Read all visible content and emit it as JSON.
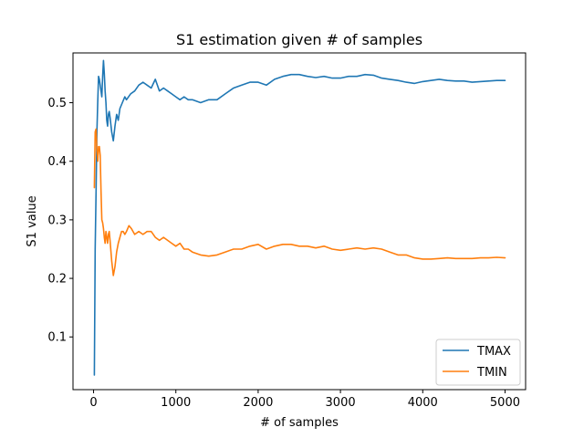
{
  "chart_data": {
    "type": "line",
    "title": "S1 estimation given # of samples",
    "xlabel": "# of samples",
    "ylabel": "S1 value",
    "xlim": [
      -250,
      5250
    ],
    "ylim": [
      0.01,
      0.585
    ],
    "xticks": [
      0,
      1000,
      2000,
      3000,
      4000,
      5000
    ],
    "yticks": [
      0.1,
      0.2,
      0.3,
      0.4,
      0.5
    ],
    "grid": false,
    "legend_position": "lower right",
    "series": [
      {
        "name": "TMAX",
        "color": "#1f77b4",
        "points": [
          [
            10,
            0.035
          ],
          [
            20,
            0.25
          ],
          [
            30,
            0.35
          ],
          [
            40,
            0.45
          ],
          [
            50,
            0.5
          ],
          [
            60,
            0.545
          ],
          [
            70,
            0.54
          ],
          [
            80,
            0.53
          ],
          [
            90,
            0.52
          ],
          [
            100,
            0.51
          ],
          [
            110,
            0.545
          ],
          [
            120,
            0.572
          ],
          [
            130,
            0.55
          ],
          [
            140,
            0.52
          ],
          [
            150,
            0.5
          ],
          [
            160,
            0.47
          ],
          [
            170,
            0.46
          ],
          [
            180,
            0.48
          ],
          [
            190,
            0.485
          ],
          [
            200,
            0.475
          ],
          [
            220,
            0.45
          ],
          [
            240,
            0.435
          ],
          [
            260,
            0.46
          ],
          [
            280,
            0.48
          ],
          [
            300,
            0.47
          ],
          [
            320,
            0.49
          ],
          [
            350,
            0.5
          ],
          [
            380,
            0.51
          ],
          [
            400,
            0.505
          ],
          [
            450,
            0.515
          ],
          [
            500,
            0.52
          ],
          [
            550,
            0.53
          ],
          [
            600,
            0.535
          ],
          [
            650,
            0.53
          ],
          [
            700,
            0.525
          ],
          [
            750,
            0.54
          ],
          [
            800,
            0.52
          ],
          [
            850,
            0.525
          ],
          [
            900,
            0.52
          ],
          [
            950,
            0.515
          ],
          [
            1000,
            0.51
          ],
          [
            1050,
            0.505
          ],
          [
            1100,
            0.51
          ],
          [
            1150,
            0.505
          ],
          [
            1200,
            0.505
          ],
          [
            1300,
            0.5
          ],
          [
            1400,
            0.505
          ],
          [
            1500,
            0.505
          ],
          [
            1600,
            0.515
          ],
          [
            1700,
            0.525
          ],
          [
            1800,
            0.53
          ],
          [
            1900,
            0.535
          ],
          [
            2000,
            0.535
          ],
          [
            2100,
            0.53
          ],
          [
            2200,
            0.54
          ],
          [
            2300,
            0.545
          ],
          [
            2400,
            0.548
          ],
          [
            2500,
            0.548
          ],
          [
            2600,
            0.545
          ],
          [
            2700,
            0.543
          ],
          [
            2800,
            0.545
          ],
          [
            2900,
            0.542
          ],
          [
            3000,
            0.542
          ],
          [
            3100,
            0.545
          ],
          [
            3200,
            0.545
          ],
          [
            3300,
            0.548
          ],
          [
            3400,
            0.547
          ],
          [
            3500,
            0.542
          ],
          [
            3600,
            0.54
          ],
          [
            3700,
            0.538
          ],
          [
            3800,
            0.535
          ],
          [
            3900,
            0.533
          ],
          [
            4000,
            0.536
          ],
          [
            4100,
            0.538
          ],
          [
            4200,
            0.54
          ],
          [
            4300,
            0.538
          ],
          [
            4400,
            0.537
          ],
          [
            4500,
            0.537
          ],
          [
            4600,
            0.535
          ],
          [
            4700,
            0.536
          ],
          [
            4800,
            0.537
          ],
          [
            4900,
            0.538
          ],
          [
            5000,
            0.538
          ]
        ]
      },
      {
        "name": "TMIN",
        "color": "#ff7f0e",
        "points": [
          [
            10,
            0.355
          ],
          [
            20,
            0.45
          ],
          [
            30,
            0.455
          ],
          [
            40,
            0.42
          ],
          [
            50,
            0.4
          ],
          [
            60,
            0.425
          ],
          [
            70,
            0.425
          ],
          [
            80,
            0.41
          ],
          [
            90,
            0.35
          ],
          [
            100,
            0.3
          ],
          [
            110,
            0.295
          ],
          [
            120,
            0.285
          ],
          [
            130,
            0.27
          ],
          [
            140,
            0.26
          ],
          [
            150,
            0.28
          ],
          [
            160,
            0.27
          ],
          [
            170,
            0.26
          ],
          [
            180,
            0.275
          ],
          [
            190,
            0.28
          ],
          [
            200,
            0.265
          ],
          [
            220,
            0.23
          ],
          [
            240,
            0.205
          ],
          [
            260,
            0.22
          ],
          [
            280,
            0.245
          ],
          [
            300,
            0.26
          ],
          [
            320,
            0.27
          ],
          [
            340,
            0.28
          ],
          [
            360,
            0.28
          ],
          [
            380,
            0.275
          ],
          [
            400,
            0.28
          ],
          [
            430,
            0.29
          ],
          [
            460,
            0.285
          ],
          [
            500,
            0.275
          ],
          [
            550,
            0.28
          ],
          [
            600,
            0.275
          ],
          [
            650,
            0.28
          ],
          [
            700,
            0.28
          ],
          [
            750,
            0.27
          ],
          [
            800,
            0.265
          ],
          [
            850,
            0.27
          ],
          [
            900,
            0.265
          ],
          [
            950,
            0.26
          ],
          [
            1000,
            0.255
          ],
          [
            1050,
            0.26
          ],
          [
            1100,
            0.25
          ],
          [
            1150,
            0.25
          ],
          [
            1200,
            0.245
          ],
          [
            1300,
            0.24
          ],
          [
            1400,
            0.238
          ],
          [
            1500,
            0.24
          ],
          [
            1600,
            0.245
          ],
          [
            1700,
            0.25
          ],
          [
            1800,
            0.25
          ],
          [
            1900,
            0.255
          ],
          [
            2000,
            0.258
          ],
          [
            2100,
            0.25
          ],
          [
            2200,
            0.255
          ],
          [
            2300,
            0.258
          ],
          [
            2400,
            0.258
          ],
          [
            2500,
            0.255
          ],
          [
            2600,
            0.255
          ],
          [
            2700,
            0.252
          ],
          [
            2800,
            0.255
          ],
          [
            2900,
            0.25
          ],
          [
            3000,
            0.248
          ],
          [
            3100,
            0.25
          ],
          [
            3200,
            0.252
          ],
          [
            3300,
            0.25
          ],
          [
            3400,
            0.252
          ],
          [
            3500,
            0.25
          ],
          [
            3600,
            0.245
          ],
          [
            3700,
            0.24
          ],
          [
            3800,
            0.24
          ],
          [
            3900,
            0.235
          ],
          [
            4000,
            0.233
          ],
          [
            4100,
            0.233
          ],
          [
            4200,
            0.234
          ],
          [
            4300,
            0.235
          ],
          [
            4400,
            0.234
          ],
          [
            4500,
            0.234
          ],
          [
            4600,
            0.234
          ],
          [
            4700,
            0.235
          ],
          [
            4800,
            0.235
          ],
          [
            4900,
            0.236
          ],
          [
            5000,
            0.235
          ]
        ]
      }
    ]
  }
}
